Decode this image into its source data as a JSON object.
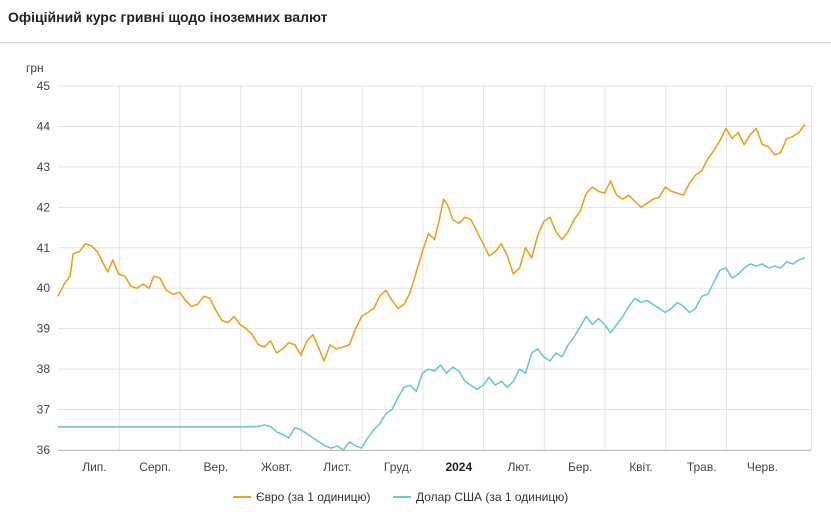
{
  "header": {
    "title": "Офіційний курс гривні щодо іноземних валют"
  },
  "chart_data": {
    "type": "line",
    "title": "Офіційний курс гривні щодо іноземних валют",
    "ylabel": "грн",
    "xlabel": "",
    "ylim": [
      36,
      45
    ],
    "yticks": [
      36,
      37,
      38,
      39,
      40,
      41,
      42,
      43,
      44,
      45
    ],
    "grid": true,
    "legend_position": "bottom",
    "x_ticks": [
      {
        "label": "Лип.",
        "at": 0.6,
        "bold": false
      },
      {
        "label": "Серп.",
        "at": 1.6,
        "bold": false
      },
      {
        "label": "Вер.",
        "at": 2.6,
        "bold": false
      },
      {
        "label": "Жовт.",
        "at": 3.6,
        "bold": false
      },
      {
        "label": "Лист.",
        "at": 4.6,
        "bold": false
      },
      {
        "label": "Груд.",
        "at": 5.6,
        "bold": false
      },
      {
        "label": "2024",
        "at": 6.6,
        "bold": true
      },
      {
        "label": "Лют.",
        "at": 7.6,
        "bold": false
      },
      {
        "label": "Бер.",
        "at": 8.6,
        "bold": false
      },
      {
        "label": "Квіт.",
        "at": 9.6,
        "bold": false
      },
      {
        "label": "Трав.",
        "at": 10.6,
        "bold": false
      },
      {
        "label": "Черв.",
        "at": 11.6,
        "bold": false
      }
    ],
    "x_range": [
      0,
      12.4
    ],
    "series": [
      {
        "name": "Євро (за 1 одиницю)",
        "color": "#E9A323",
        "points": [
          [
            0.0,
            39.8
          ],
          [
            0.1,
            40.1
          ],
          [
            0.2,
            40.3
          ],
          [
            0.25,
            40.85
          ],
          [
            0.35,
            40.9
          ],
          [
            0.45,
            41.1
          ],
          [
            0.55,
            41.05
          ],
          [
            0.65,
            40.9
          ],
          [
            0.75,
            40.6
          ],
          [
            0.82,
            40.4
          ],
          [
            0.9,
            40.7
          ],
          [
            1.0,
            40.35
          ],
          [
            1.1,
            40.3
          ],
          [
            1.2,
            40.05
          ],
          [
            1.3,
            40.0
          ],
          [
            1.4,
            40.1
          ],
          [
            1.5,
            40.0
          ],
          [
            1.58,
            40.3
          ],
          [
            1.68,
            40.25
          ],
          [
            1.78,
            39.95
          ],
          [
            1.9,
            39.85
          ],
          [
            2.0,
            39.9
          ],
          [
            2.1,
            39.7
          ],
          [
            2.2,
            39.55
          ],
          [
            2.3,
            39.6
          ],
          [
            2.4,
            39.8
          ],
          [
            2.5,
            39.75
          ],
          [
            2.6,
            39.45
          ],
          [
            2.7,
            39.2
          ],
          [
            2.8,
            39.15
          ],
          [
            2.9,
            39.3
          ],
          [
            3.0,
            39.1
          ],
          [
            3.1,
            39.0
          ],
          [
            3.2,
            38.85
          ],
          [
            3.3,
            38.6
          ],
          [
            3.4,
            38.55
          ],
          [
            3.5,
            38.7
          ],
          [
            3.6,
            38.4
          ],
          [
            3.7,
            38.5
          ],
          [
            3.8,
            38.65
          ],
          [
            3.9,
            38.6
          ],
          [
            4.0,
            38.35
          ],
          [
            4.1,
            38.7
          ],
          [
            4.2,
            38.85
          ],
          [
            4.3,
            38.5
          ],
          [
            4.38,
            38.2
          ],
          [
            4.48,
            38.6
          ],
          [
            4.58,
            38.5
          ],
          [
            4.7,
            38.55
          ],
          [
            4.8,
            38.6
          ],
          [
            4.9,
            39.0
          ],
          [
            5.0,
            39.3
          ],
          [
            5.1,
            39.4
          ],
          [
            5.2,
            39.5
          ],
          [
            5.3,
            39.8
          ],
          [
            5.4,
            39.95
          ],
          [
            5.5,
            39.7
          ],
          [
            5.6,
            39.5
          ],
          [
            5.7,
            39.6
          ],
          [
            5.8,
            39.9
          ],
          [
            5.9,
            40.4
          ],
          [
            6.0,
            40.9
          ],
          [
            6.1,
            41.35
          ],
          [
            6.2,
            41.2
          ],
          [
            6.28,
            41.7
          ],
          [
            6.35,
            42.2
          ],
          [
            6.42,
            42.05
          ],
          [
            6.5,
            41.7
          ],
          [
            6.6,
            41.6
          ],
          [
            6.7,
            41.75
          ],
          [
            6.8,
            41.7
          ],
          [
            6.9,
            41.4
          ],
          [
            7.0,
            41.1
          ],
          [
            7.1,
            40.8
          ],
          [
            7.2,
            40.9
          ],
          [
            7.3,
            41.1
          ],
          [
            7.4,
            40.8
          ],
          [
            7.5,
            40.35
          ],
          [
            7.6,
            40.5
          ],
          [
            7.7,
            41.0
          ],
          [
            7.8,
            40.75
          ],
          [
            7.9,
            41.3
          ],
          [
            8.0,
            41.65
          ],
          [
            8.1,
            41.75
          ],
          [
            8.2,
            41.4
          ],
          [
            8.3,
            41.2
          ],
          [
            8.4,
            41.4
          ],
          [
            8.5,
            41.7
          ],
          [
            8.6,
            41.9
          ],
          [
            8.7,
            42.35
          ],
          [
            8.8,
            42.5
          ],
          [
            8.9,
            42.4
          ],
          [
            9.0,
            42.35
          ],
          [
            9.1,
            42.65
          ],
          [
            9.2,
            42.3
          ],
          [
            9.3,
            42.2
          ],
          [
            9.4,
            42.3
          ],
          [
            9.5,
            42.15
          ],
          [
            9.6,
            42.0
          ],
          [
            9.7,
            42.1
          ],
          [
            9.8,
            42.2
          ],
          [
            9.9,
            42.25
          ],
          [
            10.0,
            42.5
          ],
          [
            10.1,
            42.4
          ],
          [
            10.2,
            42.35
          ],
          [
            10.3,
            42.3
          ],
          [
            10.4,
            42.6
          ],
          [
            10.5,
            42.8
          ],
          [
            10.6,
            42.9
          ],
          [
            10.7,
            43.2
          ],
          [
            10.8,
            43.4
          ],
          [
            10.9,
            43.65
          ],
          [
            11.0,
            43.95
          ],
          [
            11.1,
            43.7
          ],
          [
            11.2,
            43.85
          ],
          [
            11.3,
            43.55
          ],
          [
            11.4,
            43.8
          ],
          [
            11.5,
            43.95
          ],
          [
            11.6,
            43.55
          ],
          [
            11.7,
            43.5
          ],
          [
            11.8,
            43.3
          ],
          [
            11.9,
            43.35
          ],
          [
            12.0,
            43.7
          ],
          [
            12.1,
            43.75
          ],
          [
            12.2,
            43.85
          ],
          [
            12.3,
            44.05
          ]
        ]
      },
      {
        "name": "Долар США (за 1 одиницю)",
        "color": "#6FC8CC",
        "points": [
          [
            0.0,
            36.57
          ],
          [
            1.0,
            36.57
          ],
          [
            2.0,
            36.57
          ],
          [
            3.0,
            36.57
          ],
          [
            3.3,
            36.58
          ],
          [
            3.4,
            36.62
          ],
          [
            3.5,
            36.58
          ],
          [
            3.6,
            36.45
          ],
          [
            3.7,
            36.38
          ],
          [
            3.8,
            36.3
          ],
          [
            3.9,
            36.55
          ],
          [
            4.0,
            36.5
          ],
          [
            4.1,
            36.4
          ],
          [
            4.2,
            36.3
          ],
          [
            4.3,
            36.2
          ],
          [
            4.4,
            36.1
          ],
          [
            4.5,
            36.05
          ],
          [
            4.6,
            36.1
          ],
          [
            4.7,
            36.0
          ],
          [
            4.8,
            36.2
          ],
          [
            4.9,
            36.1
          ],
          [
            5.0,
            36.05
          ],
          [
            5.1,
            36.3
          ],
          [
            5.2,
            36.5
          ],
          [
            5.3,
            36.65
          ],
          [
            5.4,
            36.9
          ],
          [
            5.5,
            37.0
          ],
          [
            5.6,
            37.3
          ],
          [
            5.7,
            37.55
          ],
          [
            5.8,
            37.6
          ],
          [
            5.9,
            37.45
          ],
          [
            6.0,
            37.9
          ],
          [
            6.1,
            38.0
          ],
          [
            6.2,
            37.95
          ],
          [
            6.3,
            38.1
          ],
          [
            6.4,
            37.9
          ],
          [
            6.5,
            38.05
          ],
          [
            6.6,
            37.95
          ],
          [
            6.7,
            37.7
          ],
          [
            6.8,
            37.6
          ],
          [
            6.9,
            37.5
          ],
          [
            7.0,
            37.6
          ],
          [
            7.1,
            37.8
          ],
          [
            7.2,
            37.6
          ],
          [
            7.3,
            37.7
          ],
          [
            7.4,
            37.55
          ],
          [
            7.5,
            37.7
          ],
          [
            7.6,
            38.0
          ],
          [
            7.7,
            37.9
          ],
          [
            7.8,
            38.4
          ],
          [
            7.9,
            38.5
          ],
          [
            8.0,
            38.3
          ],
          [
            8.1,
            38.2
          ],
          [
            8.2,
            38.4
          ],
          [
            8.3,
            38.3
          ],
          [
            8.4,
            38.6
          ],
          [
            8.5,
            38.8
          ],
          [
            8.6,
            39.05
          ],
          [
            8.7,
            39.3
          ],
          [
            8.8,
            39.1
          ],
          [
            8.9,
            39.25
          ],
          [
            9.0,
            39.1
          ],
          [
            9.1,
            38.9
          ],
          [
            9.2,
            39.1
          ],
          [
            9.3,
            39.3
          ],
          [
            9.4,
            39.55
          ],
          [
            9.5,
            39.75
          ],
          [
            9.6,
            39.65
          ],
          [
            9.7,
            39.7
          ],
          [
            9.8,
            39.6
          ],
          [
            9.9,
            39.5
          ],
          [
            10.0,
            39.4
          ],
          [
            10.1,
            39.5
          ],
          [
            10.2,
            39.65
          ],
          [
            10.3,
            39.55
          ],
          [
            10.4,
            39.4
          ],
          [
            10.5,
            39.5
          ],
          [
            10.6,
            39.8
          ],
          [
            10.7,
            39.85
          ],
          [
            10.8,
            40.15
          ],
          [
            10.9,
            40.45
          ],
          [
            11.0,
            40.5
          ],
          [
            11.1,
            40.25
          ],
          [
            11.2,
            40.35
          ],
          [
            11.3,
            40.5
          ],
          [
            11.4,
            40.6
          ],
          [
            11.5,
            40.55
          ],
          [
            11.6,
            40.6
          ],
          [
            11.7,
            40.5
          ],
          [
            11.8,
            40.55
          ],
          [
            11.9,
            40.5
          ],
          [
            12.0,
            40.65
          ],
          [
            12.1,
            40.6
          ],
          [
            12.2,
            40.7
          ],
          [
            12.3,
            40.75
          ]
        ]
      }
    ]
  }
}
